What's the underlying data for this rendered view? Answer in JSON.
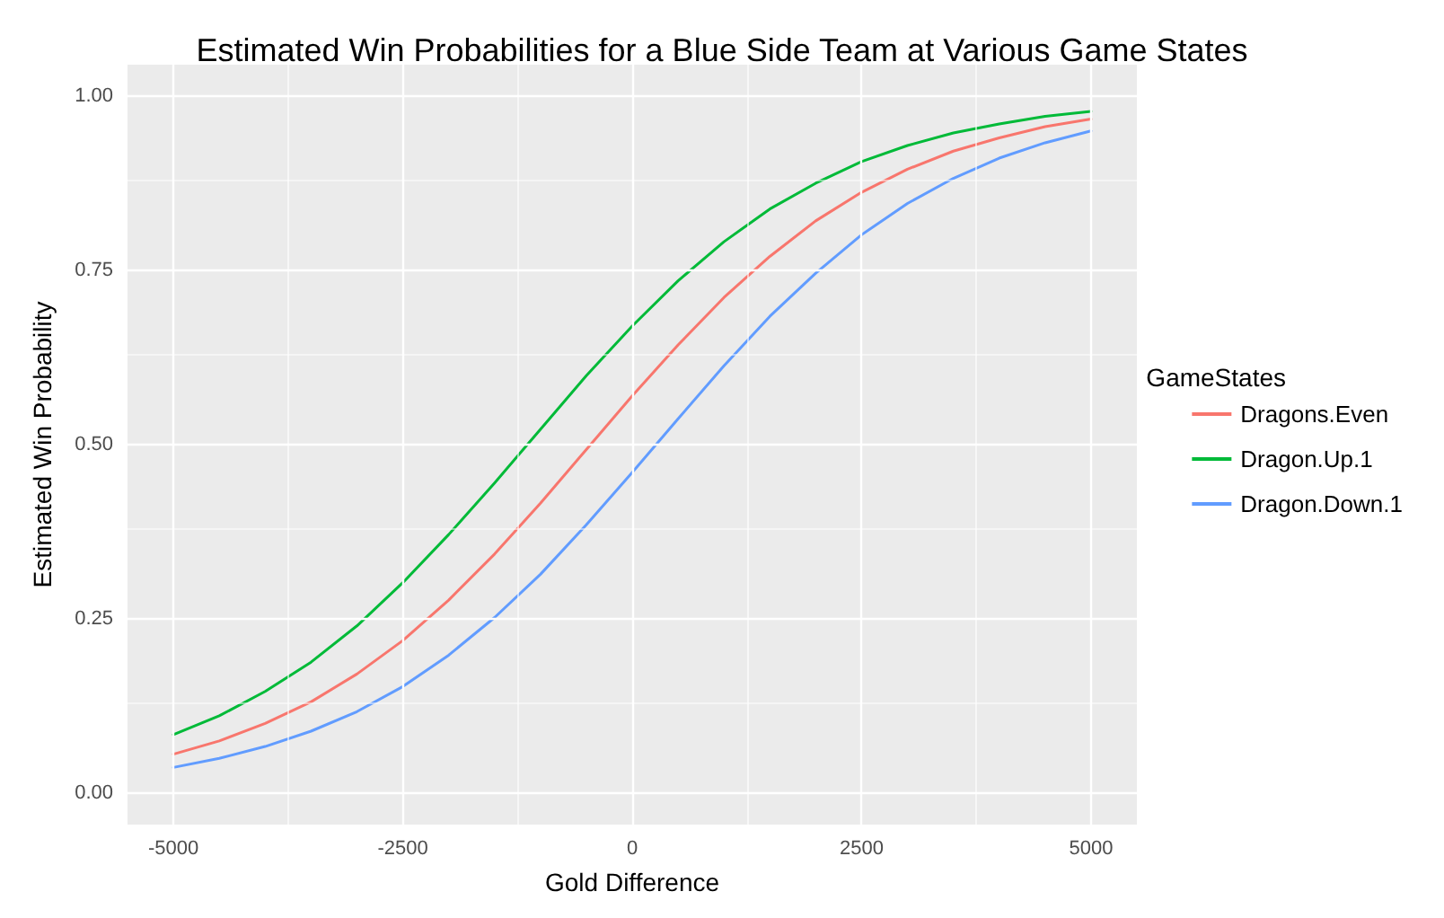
{
  "chart_data": {
    "type": "line",
    "title": "Estimated Win Probabilities for a Blue Side Team at Various Game States",
    "xlabel": "Gold Difference",
    "ylabel": "Estimated Win Probability",
    "legend_title": "GameStates",
    "legend": "right",
    "grid": true,
    "marker": "none",
    "line_style": "solid",
    "x": [
      -5000,
      -4500,
      -4000,
      -3500,
      -3000,
      -2500,
      -2000,
      -1500,
      -1000,
      -500,
      0,
      500,
      1000,
      1500,
      2000,
      2500,
      3000,
      3500,
      4000,
      4500,
      5000
    ],
    "xlim": [
      -5500,
      5500
    ],
    "xticks": [
      -5000,
      -2500,
      0,
      2500,
      5000
    ],
    "ylim": [
      -0.045,
      1.045
    ],
    "yticks": [
      {
        "value": 0,
        "label": "0.00"
      },
      {
        "value": 0.25,
        "label": "0.25"
      },
      {
        "value": 0.5,
        "label": "0.50"
      },
      {
        "value": 0.75,
        "label": "0.75"
      },
      {
        "value": 1,
        "label": "1.00"
      }
    ],
    "series": [
      {
        "name": "Dragons.Even",
        "color": "#f8766d",
        "values": [
          0.056,
          0.075,
          0.1,
          0.131,
          0.171,
          0.219,
          0.277,
          0.343,
          0.416,
          0.493,
          0.57,
          0.643,
          0.711,
          0.77,
          0.821,
          0.862,
          0.895,
          0.921,
          0.94,
          0.956,
          0.967
        ]
      },
      {
        "name": "Dragon.Up.1",
        "color": "#00ba38",
        "values": [
          0.084,
          0.111,
          0.146,
          0.188,
          0.24,
          0.302,
          0.371,
          0.445,
          0.522,
          0.599,
          0.67,
          0.735,
          0.791,
          0.838,
          0.875,
          0.906,
          0.929,
          0.947,
          0.96,
          0.971,
          0.978
        ]
      },
      {
        "name": "Dragon.Down.1",
        "color": "#619cff",
        "values": [
          0.037,
          0.05,
          0.067,
          0.089,
          0.117,
          0.153,
          0.198,
          0.252,
          0.314,
          0.385,
          0.46,
          0.537,
          0.613,
          0.684,
          0.746,
          0.801,
          0.846,
          0.882,
          0.911,
          0.933,
          0.95
        ]
      }
    ]
  }
}
